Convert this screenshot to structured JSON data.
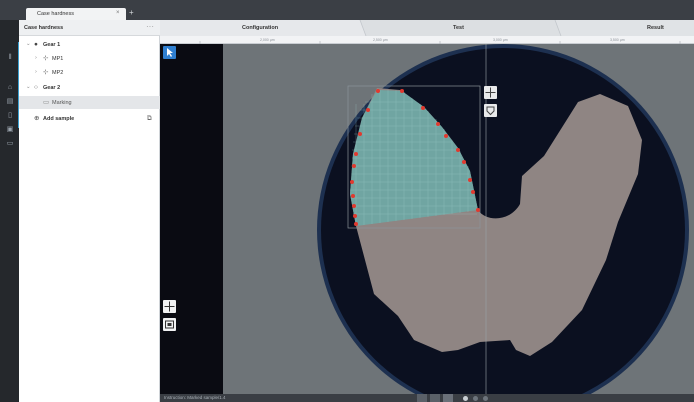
{
  "app": {
    "tab_title": "Case hardness",
    "tab_close": "×",
    "new_tab": "+"
  },
  "rail": {
    "icons": [
      "bars-icon",
      "home-icon",
      "chart-icon",
      "document-icon",
      "image-icon",
      "camera-icon"
    ],
    "accent_color": "#3aa0d0"
  },
  "tree": {
    "header": "Case hardness",
    "header_menu": "···",
    "items": [
      {
        "caret": "⌄",
        "icon": "●",
        "label": "Gear 1",
        "bold": true
      },
      {
        "caret": "›",
        "icon": "⊹",
        "label": "MP1",
        "bold": false
      },
      {
        "caret": "›",
        "icon": "⊹",
        "label": "MP2",
        "bold": false
      },
      {
        "caret": "⌄",
        "icon": "○",
        "label": "Gear 2",
        "bold": true
      },
      {
        "caret": "",
        "icon": "▭",
        "label": "Marking",
        "bold": false
      },
      {
        "caret": "",
        "icon": "⊕",
        "label": "Add sample",
        "bold": true,
        "extra": "⧉"
      }
    ]
  },
  "header_tabs": [
    "Configuration",
    "Test",
    "Result"
  ],
  "ruler": [
    "2,000 µm",
    "2,500 µm",
    "3,000 µm",
    "3,500 µm"
  ],
  "viewport": {
    "tools": {
      "pointer": "pointer-icon",
      "move": "move-icon",
      "frame": "frame-icon",
      "overlay_move": "move-icon",
      "overlay_shape": "shape-icon"
    },
    "colors": {
      "background": "#6e7478",
      "disc": "#0b1020",
      "disc_rim": "#1d3050",
      "specimen": "#8f8583",
      "marked_area": "#6fa6a3",
      "marker": "#e03a2f"
    }
  },
  "status": {
    "label": "Instruction: Marked sample/1.4"
  }
}
